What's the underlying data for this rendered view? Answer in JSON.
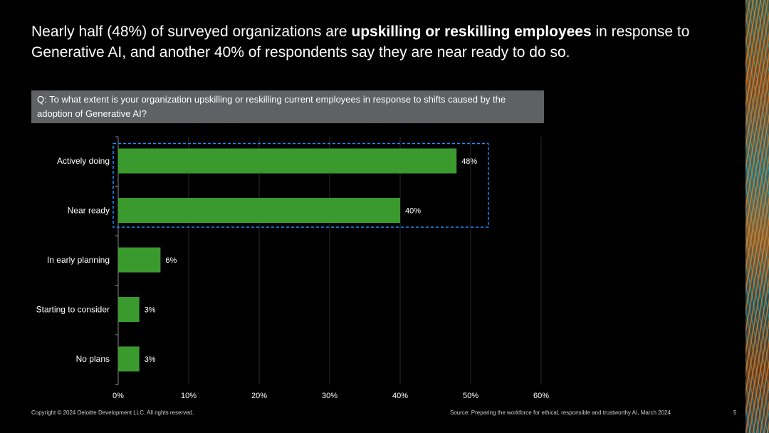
{
  "slide": {
    "title_pre": "Nearly half (48%) of surveyed organizations are ",
    "title_bold": "upskilling or reskilling employees",
    "title_post": " in response to Generative AI, and another 40% of respondents say they are near ready to do so.",
    "question": "Q: To what extent is your organization upskilling or reskilling current employees in response to shifts caused by the adoption of Generative AI?",
    "copyright": "Copyright © 2024 Deloitte Development LLC. All rights reserved.",
    "source": "Source: Preparing the workforce for ethical, responsible and trustworthy AI, March 2024",
    "page_number": "5"
  },
  "colors": {
    "bar": "#3a9a2e",
    "highlight": "#1e90ff",
    "grid": "#2a2a2a"
  },
  "chart_data": {
    "type": "bar",
    "orientation": "horizontal",
    "categories": [
      "Actively doing",
      "Near ready",
      "In early planning",
      "Starting to consider",
      "No plans"
    ],
    "values": [
      48,
      40,
      6,
      3,
      3
    ],
    "value_labels": [
      "48%",
      "40%",
      "6%",
      "3%",
      "3%"
    ],
    "xticks": [
      0,
      10,
      20,
      30,
      40,
      50,
      60
    ],
    "xtick_labels": [
      "0%",
      "10%",
      "20%",
      "30%",
      "40%",
      "50%",
      "60%"
    ],
    "xlim": [
      0,
      60
    ],
    "highlighted_categories": [
      "Actively doing",
      "Near ready"
    ],
    "grid": true
  }
}
